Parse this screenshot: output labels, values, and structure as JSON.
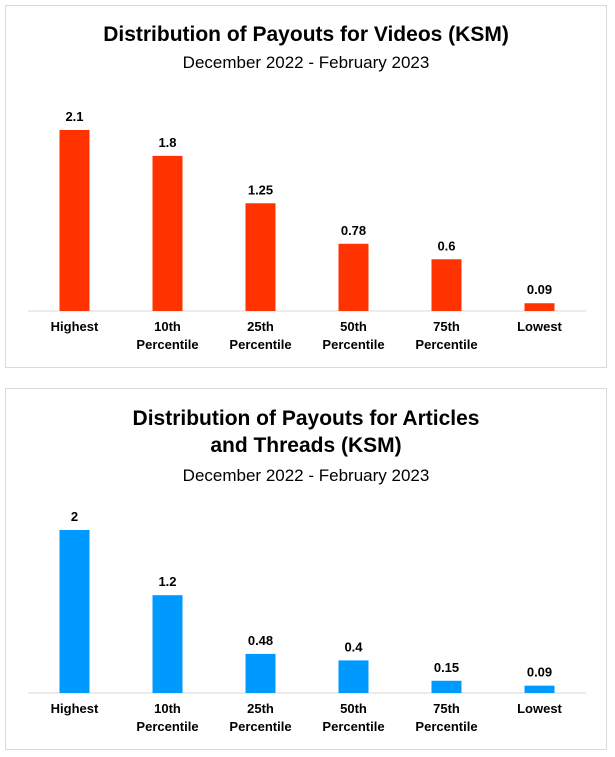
{
  "charts": [
    {
      "title": "Distribution of Payouts for Videos (KSM)",
      "subtitle": "December 2022 - February 2023"
    },
    {
      "title_line1": "Distribution of Payouts for Articles",
      "title_line2": "and Threads (KSM)",
      "subtitle": "December 2022 - February 2023"
    }
  ],
  "chart_data": [
    {
      "type": "bar",
      "title": "Distribution of Payouts for Videos (KSM)",
      "subtitle": "December 2022 - February 2023",
      "categories": [
        [
          "Highest"
        ],
        [
          "10th",
          "Percentile"
        ],
        [
          "25th",
          "Percentile"
        ],
        [
          "50th",
          "Percentile"
        ],
        [
          "75th",
          "Percentile"
        ],
        [
          "Lowest"
        ]
      ],
      "values": [
        2.1,
        1.8,
        1.25,
        0.78,
        0.6,
        0.09
      ],
      "value_labels": [
        "2.1",
        "1.8",
        "1.25",
        "0.78",
        "0.6",
        "0.09"
      ],
      "color": "#ff3300",
      "ylim": [
        0,
        2.1
      ],
      "grid": false,
      "legend": "none"
    },
    {
      "type": "bar",
      "title": "Distribution of Payouts for Articles and Threads (KSM)",
      "subtitle": "December 2022 - February 2023",
      "categories": [
        [
          "Highest"
        ],
        [
          "10th",
          "Percentile"
        ],
        [
          "25th",
          "Percentile"
        ],
        [
          "50th",
          "Percentile"
        ],
        [
          "75th",
          "Percentile"
        ],
        [
          "Lowest"
        ]
      ],
      "values": [
        2,
        1.2,
        0.48,
        0.4,
        0.15,
        0.09
      ],
      "value_labels": [
        "2",
        "1.2",
        "0.48",
        "0.4",
        "0.15",
        "0.09"
      ],
      "color": "#0099ff",
      "ylim": [
        0,
        2
      ],
      "grid": false,
      "legend": "none"
    }
  ]
}
